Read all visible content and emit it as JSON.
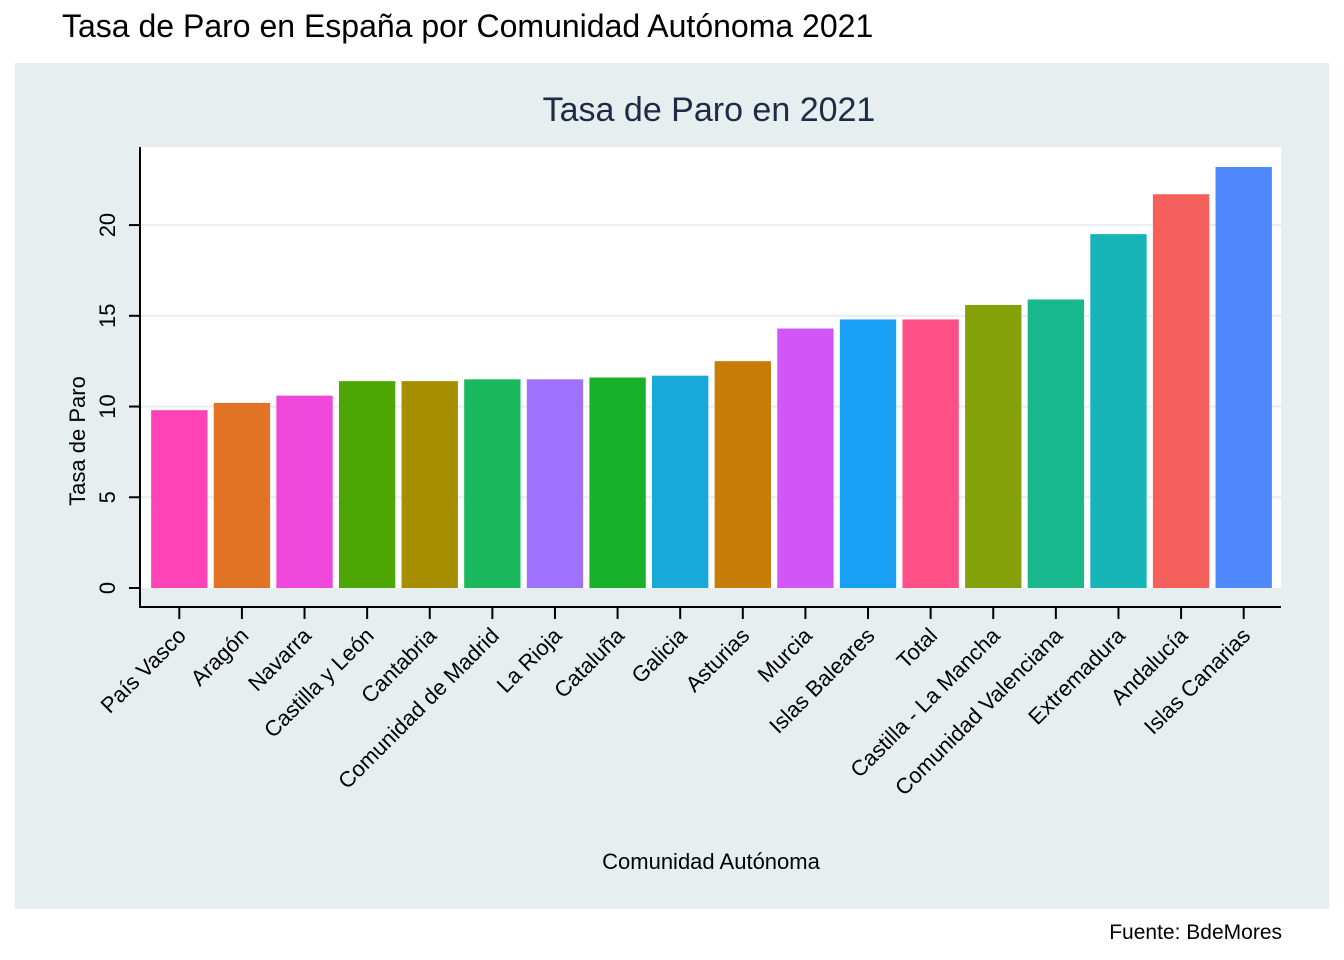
{
  "page": {
    "title": "Tasa de Paro en España por Comunidad Autónoma 2021",
    "source": "Fuente: BdeMores"
  },
  "chart_data": {
    "type": "bar",
    "title": "Tasa de Paro en 2021",
    "xlabel": "Comunidad Autónoma",
    "ylabel": "Tasa de Paro",
    "ylim": [
      0,
      23.2
    ],
    "yticks": [
      0,
      5,
      10,
      15,
      20
    ],
    "grid": "horizontal",
    "legend": "none",
    "categories": [
      "País Vasco",
      "Aragón",
      "Navarra",
      "Castilla y León",
      "Cantabria",
      "Comunidad de Madrid",
      "La Rioja",
      "Cataluña",
      "Galicia",
      "Asturias",
      "Murcia",
      "Islas Baleares",
      "Total",
      "Castilla - La Mancha",
      "Comunidad Valenciana",
      "Extremadura",
      "Andalucía",
      "Islas Canarias"
    ],
    "values": [
      9.8,
      10.2,
      10.6,
      11.4,
      11.4,
      11.5,
      11.5,
      11.6,
      11.7,
      12.5,
      14.3,
      14.8,
      14.8,
      15.6,
      15.9,
      19.5,
      21.7,
      23.2
    ],
    "colors": [
      "#ff43b7",
      "#e27224",
      "#f047dc",
      "#4ea605",
      "#a78d00",
      "#1bb85f",
      "#a070ff",
      "#19b12c",
      "#18a9d8",
      "#c77d07",
      "#d255f7",
      "#17a0f4",
      "#fe4f86",
      "#85a109",
      "#19b78e",
      "#17b5b8",
      "#f55f5c",
      "#4f88fd"
    ]
  }
}
